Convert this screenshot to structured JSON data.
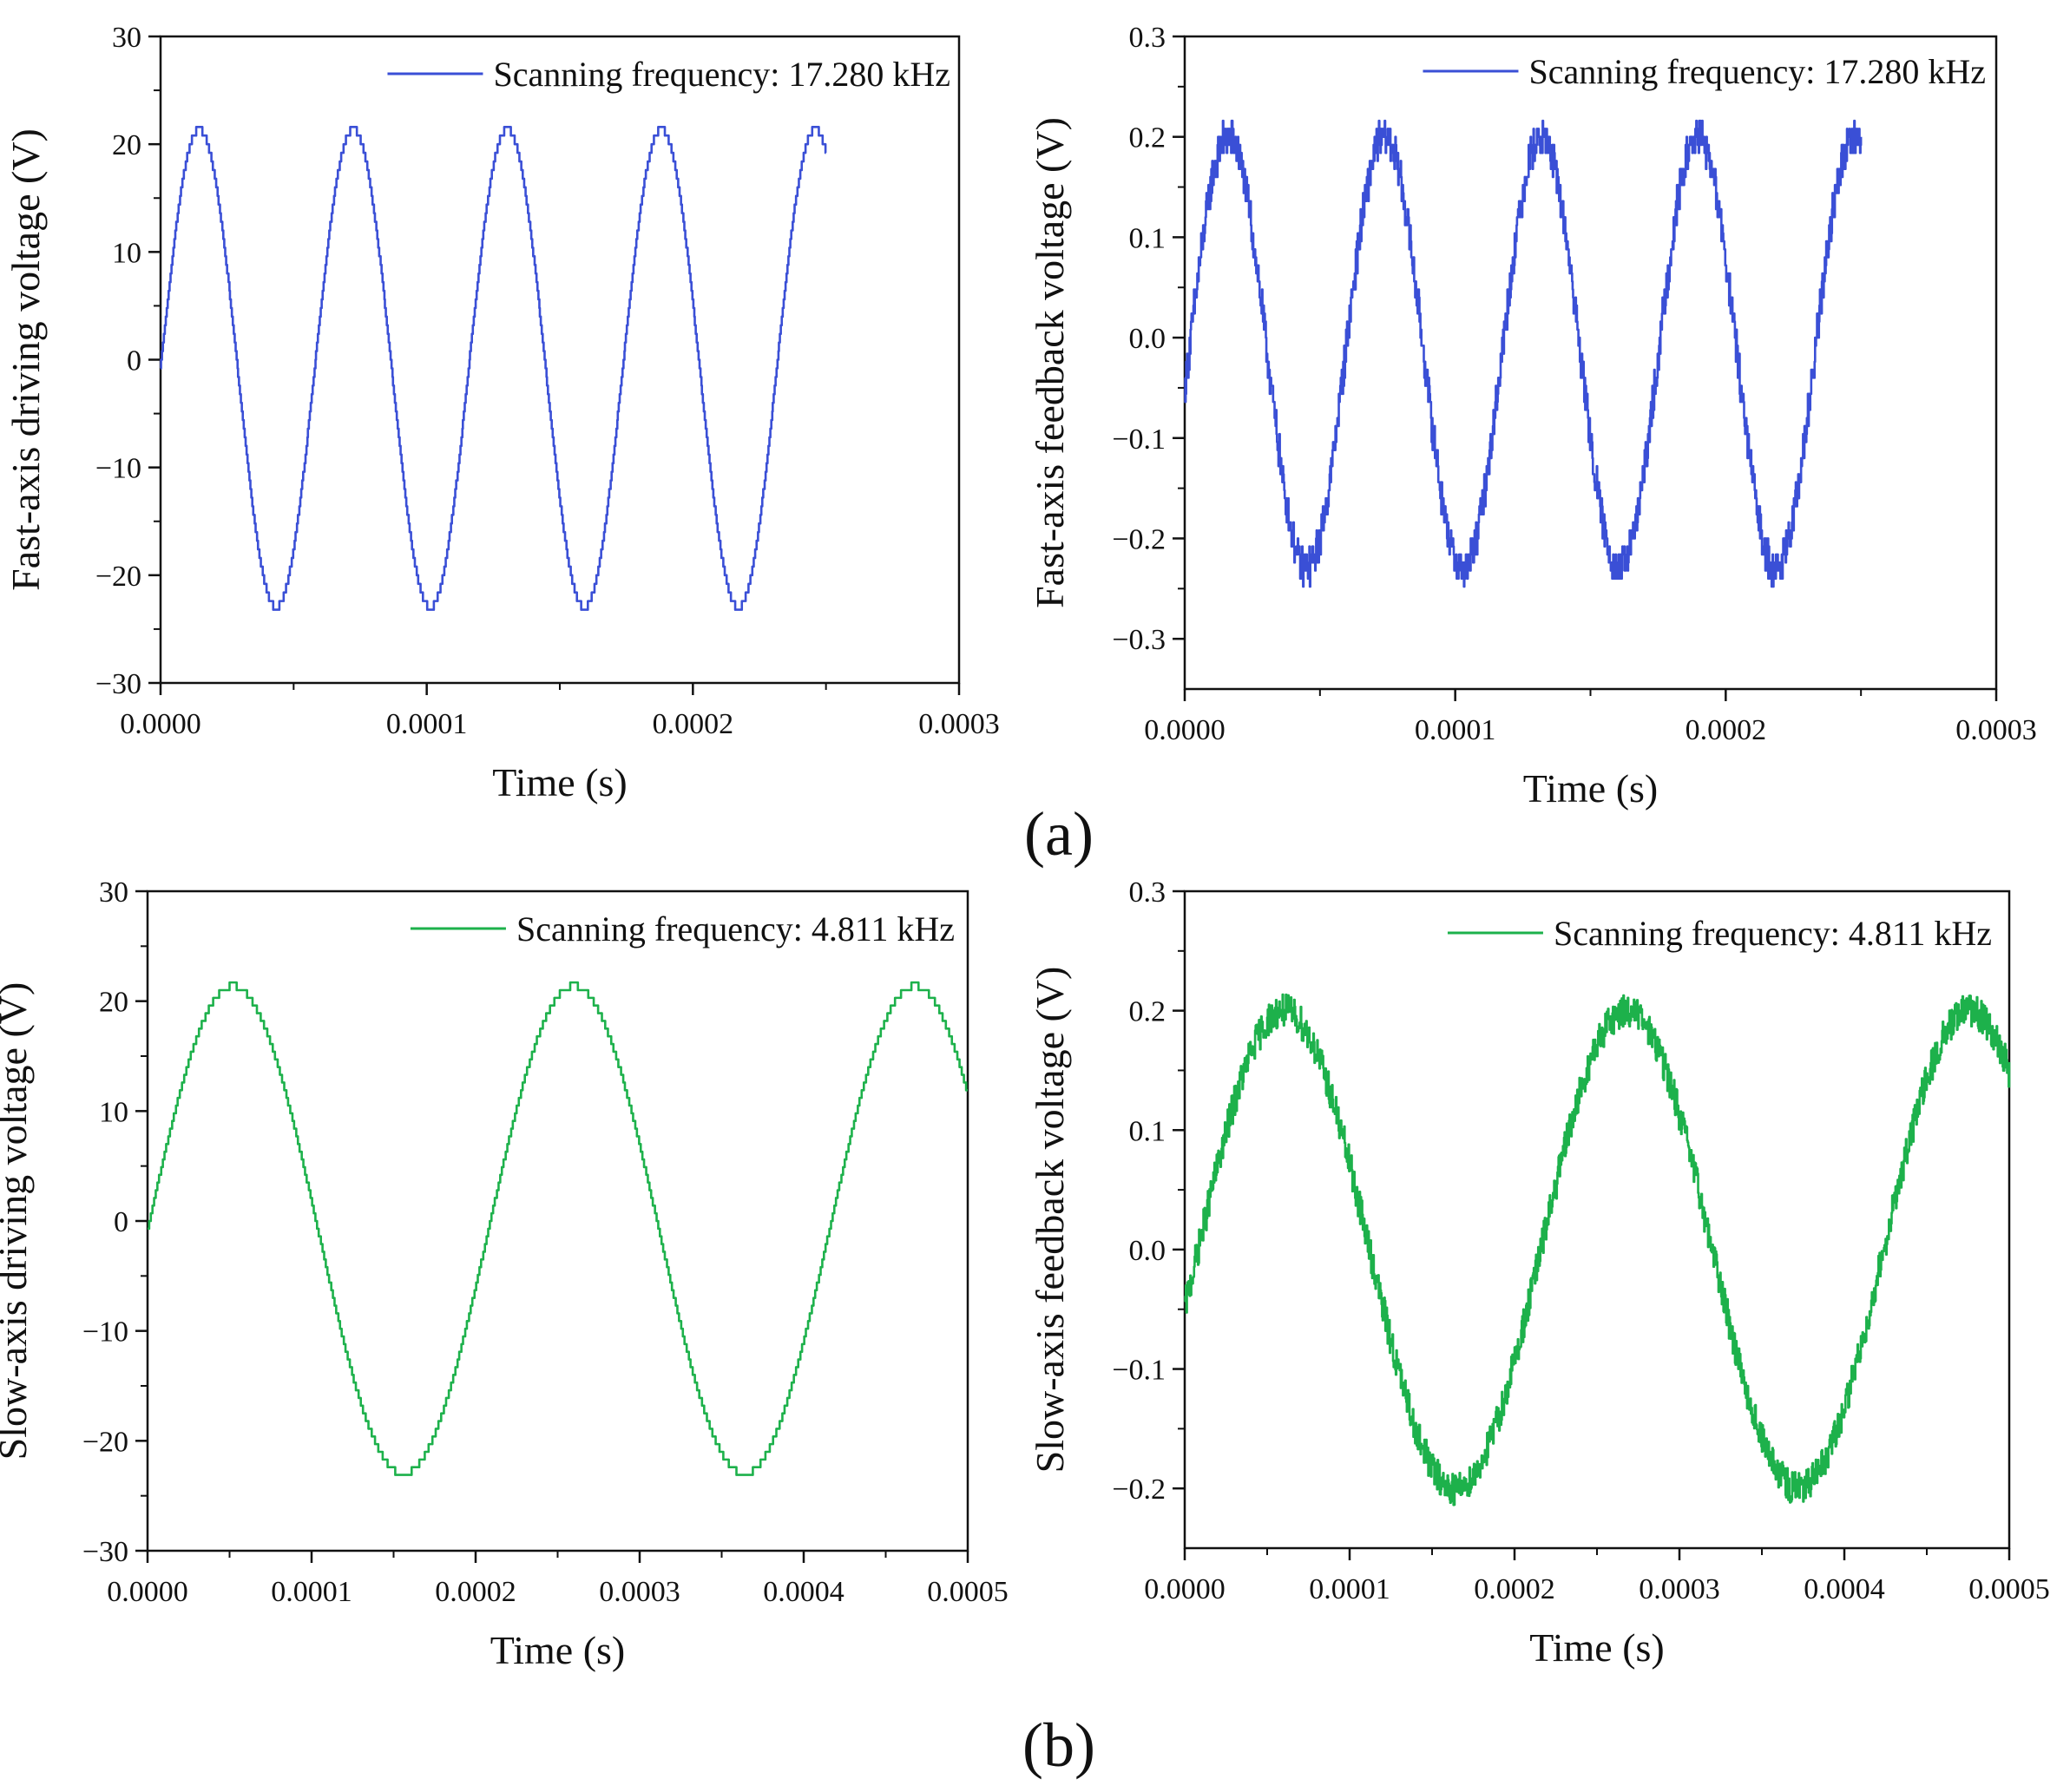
{
  "figure": {
    "panel_labels": [
      "(a)",
      "(b)"
    ]
  },
  "chart_data": [
    {
      "id": "fast-drive",
      "type": "line",
      "panel": "(a)",
      "xlabel": "Time (s)",
      "ylabel": "Fast-axis driving voltage (V)",
      "xlim": [
        0,
        0.0003
      ],
      "ylim": [
        -30,
        30
      ],
      "xticks": [
        0,
        0.0001,
        0.0002,
        0.0003
      ],
      "xtick_labels": [
        "0.0000",
        "0.0001",
        "0.0002",
        "0.0003"
      ],
      "yticks": [
        -30,
        -20,
        -10,
        0,
        10,
        20,
        30
      ],
      "ytick_labels": [
        "−30",
        "−20",
        "−10",
        "0",
        "10",
        "20",
        "30"
      ],
      "legend_position": "top-right",
      "series": [
        {
          "name": "Scanning frequency: 17.280 kHz",
          "color": "#3a4fd6",
          "generator": {
            "kind": "sine",
            "amplitude": 22.2,
            "offset": -0.8,
            "frequency_hz": 17280,
            "x_start": 0,
            "x_end": 0.00025,
            "clip_max": 21.5,
            "clip_min": -23.0,
            "step_quantize": 0.8,
            "noise": 0,
            "samples": 1400
          }
        }
      ]
    },
    {
      "id": "fast-feedback",
      "type": "line",
      "panel": "(a)",
      "xlabel": "Time (s)",
      "ylabel": "Fast-axis feedback voltage (V)",
      "xlim": [
        0,
        0.0003
      ],
      "ylim": [
        -0.35,
        0.3
      ],
      "xticks": [
        0,
        0.0001,
        0.0002,
        0.0003
      ],
      "xtick_labels": [
        "0.0000",
        "0.0001",
        "0.0002",
        "0.0003"
      ],
      "yticks": [
        -0.3,
        -0.2,
        -0.1,
        0.0,
        0.1,
        0.2,
        0.3
      ],
      "ytick_labels": [
        "−0.3",
        "−0.2",
        "−0.1",
        "0.0",
        "0.1",
        "0.2",
        "0.3"
      ],
      "legend_position": "top-right",
      "series": [
        {
          "name": "Scanning frequency: 17.280 kHz",
          "color": "#3a4fd6",
          "generator": {
            "kind": "sine",
            "amplitude": 0.215,
            "offset": -0.015,
            "frequency_hz": 17280,
            "x_start": 0,
            "x_end": 0.00025,
            "phase_delay_s": 1.5e-06,
            "step_quantize": 0.008,
            "noise": 0.018,
            "samples": 1400
          }
        }
      ]
    },
    {
      "id": "slow-drive",
      "type": "line",
      "panel": "(b)",
      "xlabel": "Time (s)",
      "ylabel": "Slow-axis driving voltage (V)",
      "xlim": [
        0,
        0.0005
      ],
      "ylim": [
        -30,
        30
      ],
      "xticks": [
        0,
        0.0001,
        0.0002,
        0.0003,
        0.0004,
        0.0005
      ],
      "xtick_labels": [
        "0.0000",
        "0.0001",
        "0.0002",
        "0.0003",
        "0.0004",
        "0.0005"
      ],
      "yticks": [
        -30,
        -20,
        -10,
        0,
        10,
        20,
        30
      ],
      "ytick_labels": [
        "−30",
        "−20",
        "−10",
        "0",
        "10",
        "20",
        "30"
      ],
      "legend_position": "top-right",
      "series": [
        {
          "name": "Scanning frequency: 4.811 kHz",
          "color": "#1db14b",
          "generator": {
            "kind": "sine",
            "amplitude": 22.2,
            "offset": -0.8,
            "frequency_hz": 4811,
            "x_start": 0,
            "x_end": 0.0005,
            "clip_max": 21.5,
            "clip_min": -23.0,
            "step_quantize": 0.7,
            "noise": 0,
            "samples": 1500
          }
        }
      ]
    },
    {
      "id": "slow-feedback",
      "type": "line",
      "panel": "(b)",
      "xlabel": "Time (s)",
      "ylabel": "Slow-axis feedback voltage (V)",
      "xlim": [
        0,
        0.0005
      ],
      "ylim": [
        -0.25,
        0.3
      ],
      "xticks": [
        0,
        0.0001,
        0.0002,
        0.0003,
        0.0004,
        0.0005
      ],
      "xtick_labels": [
        "0.0000",
        "0.0001",
        "0.0002",
        "0.0003",
        "0.0004",
        "0.0005"
      ],
      "yticks": [
        -0.2,
        -0.1,
        0.0,
        0.1,
        0.2,
        0.3
      ],
      "ytick_labels": [
        "−0.2",
        "−0.1",
        "0.0",
        "0.1",
        "0.2",
        "0.3"
      ],
      "legend_position": "top-right",
      "series": [
        {
          "name": "Scanning frequency: 4.811 kHz",
          "color": "#1db14b",
          "generator": {
            "kind": "sine",
            "amplitude": 0.2,
            "offset": 0.0,
            "frequency_hz": 4811,
            "x_start": 0,
            "x_end": 0.0005,
            "phase_delay_s": 8e-06,
            "step_quantize": 0,
            "noise": 0.014,
            "samples": 1500
          }
        }
      ]
    }
  ]
}
